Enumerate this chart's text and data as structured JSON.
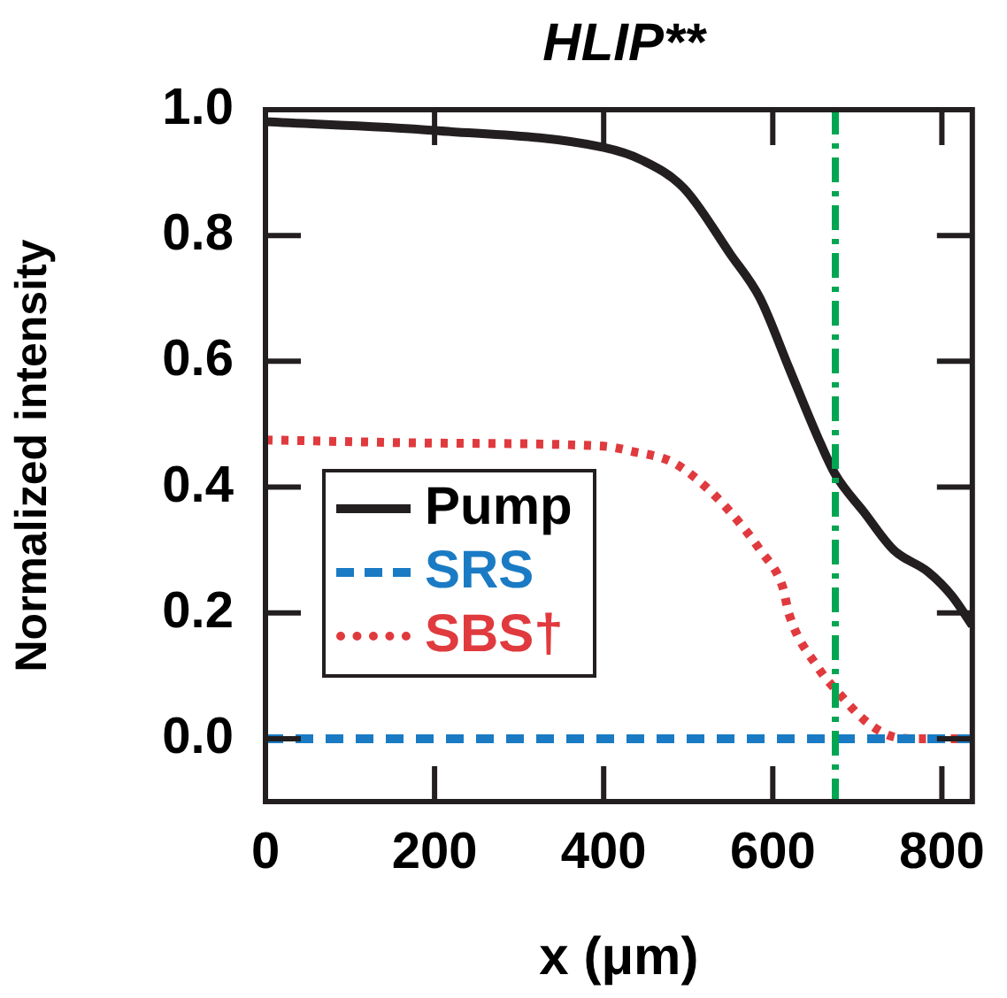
{
  "chart_data": {
    "type": "line",
    "title": "HLIP**",
    "xlabel": "x (μm)",
    "ylabel": "Normalized intensity",
    "xlim": [
      0,
      836
    ],
    "xticks": [
      0,
      200,
      400,
      600,
      800
    ],
    "ylim": [
      -0.1,
      1.0
    ],
    "yticks": [
      {
        "value": 0,
        "label": "0.0"
      },
      {
        "value": 0.2,
        "label": "0.2"
      },
      {
        "value": 0.4,
        "label": "0.4"
      },
      {
        "value": 0.6,
        "label": "0.6"
      },
      {
        "value": 0.8,
        "label": "0.8"
      },
      {
        "value": 1,
        "label": "1.0"
      }
    ],
    "grid": false,
    "legend": "left",
    "marker": "none",
    "series": [
      {
        "name": "Pump",
        "color": "#231f20",
        "line_style": "solid",
        "x": [
          0,
          200,
          400,
          445,
          495,
          550,
          585,
          619,
          653,
          674,
          708,
          743,
          784,
          812,
          836
        ],
        "values": [
          0.981,
          0.967,
          0.94,
          0.92,
          0.875,
          0.77,
          0.7,
          0.59,
          0.48,
          0.42,
          0.36,
          0.3,
          0.265,
          0.227,
          0.18
        ]
      },
      {
        "name": "SRS",
        "color": "#1a7bc4",
        "line_style": "dashed",
        "x": [
          0,
          836
        ],
        "values": [
          0,
          0
        ]
      },
      {
        "name": "SBS†",
        "color": "#e03a3e",
        "line_style": "dotted",
        "x": [
          0,
          200,
          400,
          433,
          481,
          516,
          550,
          585,
          612,
          619,
          653,
          681,
          708,
          736,
          763,
          836
        ],
        "values": [
          0.475,
          0.47,
          0.465,
          0.457,
          0.44,
          0.406,
          0.36,
          0.3,
          0.24,
          0.199,
          0.114,
          0.068,
          0.03,
          0.006,
          0,
          0
        ]
      }
    ],
    "ref_lines": [
      {
        "axis": "x",
        "value": 674,
        "color": "#00a651",
        "line_style": "dashed"
      }
    ]
  }
}
